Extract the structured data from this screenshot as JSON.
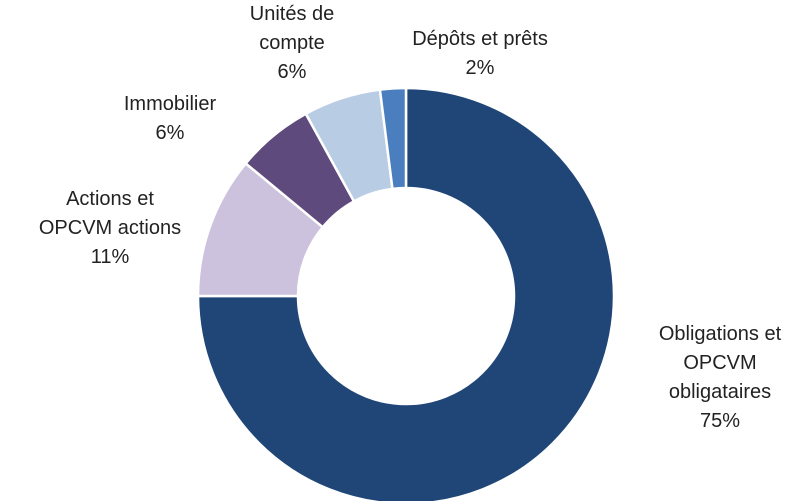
{
  "chart_data": {
    "type": "donut",
    "categories": [
      "Obligations et\nOPCVM\nobligataires",
      "Actions et\nOPCVM actions",
      "Immobilier",
      "Unités de\ncompte",
      "Dépôts et prêts"
    ],
    "values": [
      75,
      11,
      6,
      6,
      2
    ],
    "value_labels": [
      "75%",
      "11%",
      "6%",
      "6%",
      "2%"
    ],
    "colors": [
      "#1f4677",
      "#cdc2dd",
      "#5e4a7c",
      "#b8cce4",
      "#4a7ebf"
    ]
  }
}
